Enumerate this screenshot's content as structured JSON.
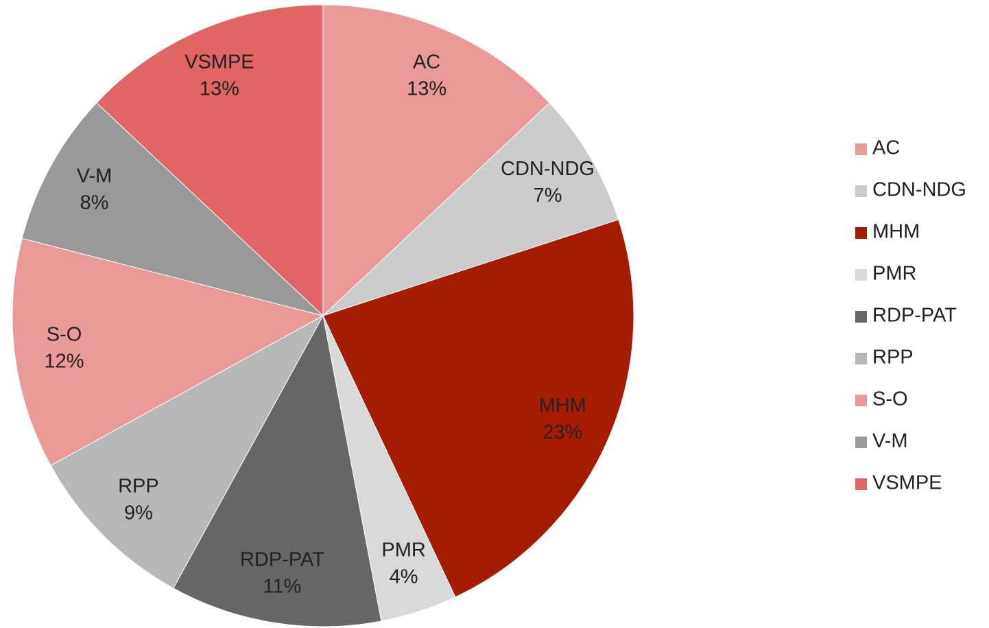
{
  "chart_data": {
    "type": "pie",
    "categories": [
      "AC",
      "CDN-NDG",
      "MHM",
      "PMR",
      "RDP-PAT",
      "RPP",
      "S-O",
      "V-M",
      "VSMPE"
    ],
    "values": [
      13,
      7,
      23,
      4,
      11,
      9,
      12,
      8,
      13
    ],
    "value_labels": [
      "13%",
      "7%",
      "23%",
      "4%",
      "11%",
      "9%",
      "12%",
      "8%",
      "13%"
    ],
    "colors": [
      "#ea9999",
      "#cccccc",
      "#a61c00",
      "#d9d9d9",
      "#666666",
      "#b7b7b7",
      "#ea9999",
      "#999999",
      "#e06666"
    ],
    "legend": "right"
  }
}
